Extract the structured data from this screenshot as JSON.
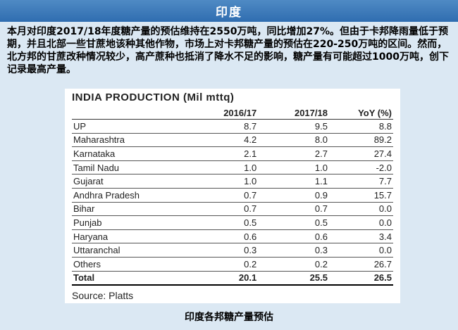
{
  "header": {
    "title": "印度"
  },
  "intro": "本月对印度2017/18年度糖产量的预估维持在2550万吨，同比增加27%。但由于卡邦降雨量低于预期，并且北部一些甘蔗地该种其他作物，市场上对卡邦糖产量的预估在220-250万吨的区间。然而，北方邦的甘蔗改种情况较少，高产蔗种也抵消了降水不足的影响，糖产量有可能超过1000万吨，创下记录最高产量。",
  "table": {
    "title": "INDIA PRODUCTION (Mil mttq)",
    "columns": [
      "",
      "2016/17",
      "2017/18",
      "YoY (%)"
    ],
    "rows": [
      [
        "UP",
        "8.7",
        "9.5",
        "8.8"
      ],
      [
        "Maharashtra",
        "4.2",
        "8.0",
        "89.2"
      ],
      [
        "Karnataka",
        "2.1",
        "2.7",
        "27.4"
      ],
      [
        "Tamil Nadu",
        "1.0",
        "1.0",
        "-2.0"
      ],
      [
        "Gujarat",
        "1.0",
        "1.1",
        "7.7"
      ],
      [
        "Andhra Pradesh",
        "0.7",
        "0.9",
        "15.7"
      ],
      [
        "Bihar",
        "0.7",
        "0.7",
        "0.0"
      ],
      [
        "Punjab",
        "0.5",
        "0.5",
        "0.0"
      ],
      [
        "Haryana",
        "0.6",
        "0.6",
        "3.4"
      ],
      [
        "Uttaranchal",
        "0.3",
        "0.3",
        "0.0"
      ],
      [
        "Others",
        "0.2",
        "0.2",
        "26.7"
      ]
    ],
    "total": [
      "Total",
      "20.1",
      "25.5",
      "26.5"
    ],
    "source": "Source: Platts"
  },
  "caption": "印度各邦糖产量预估"
}
